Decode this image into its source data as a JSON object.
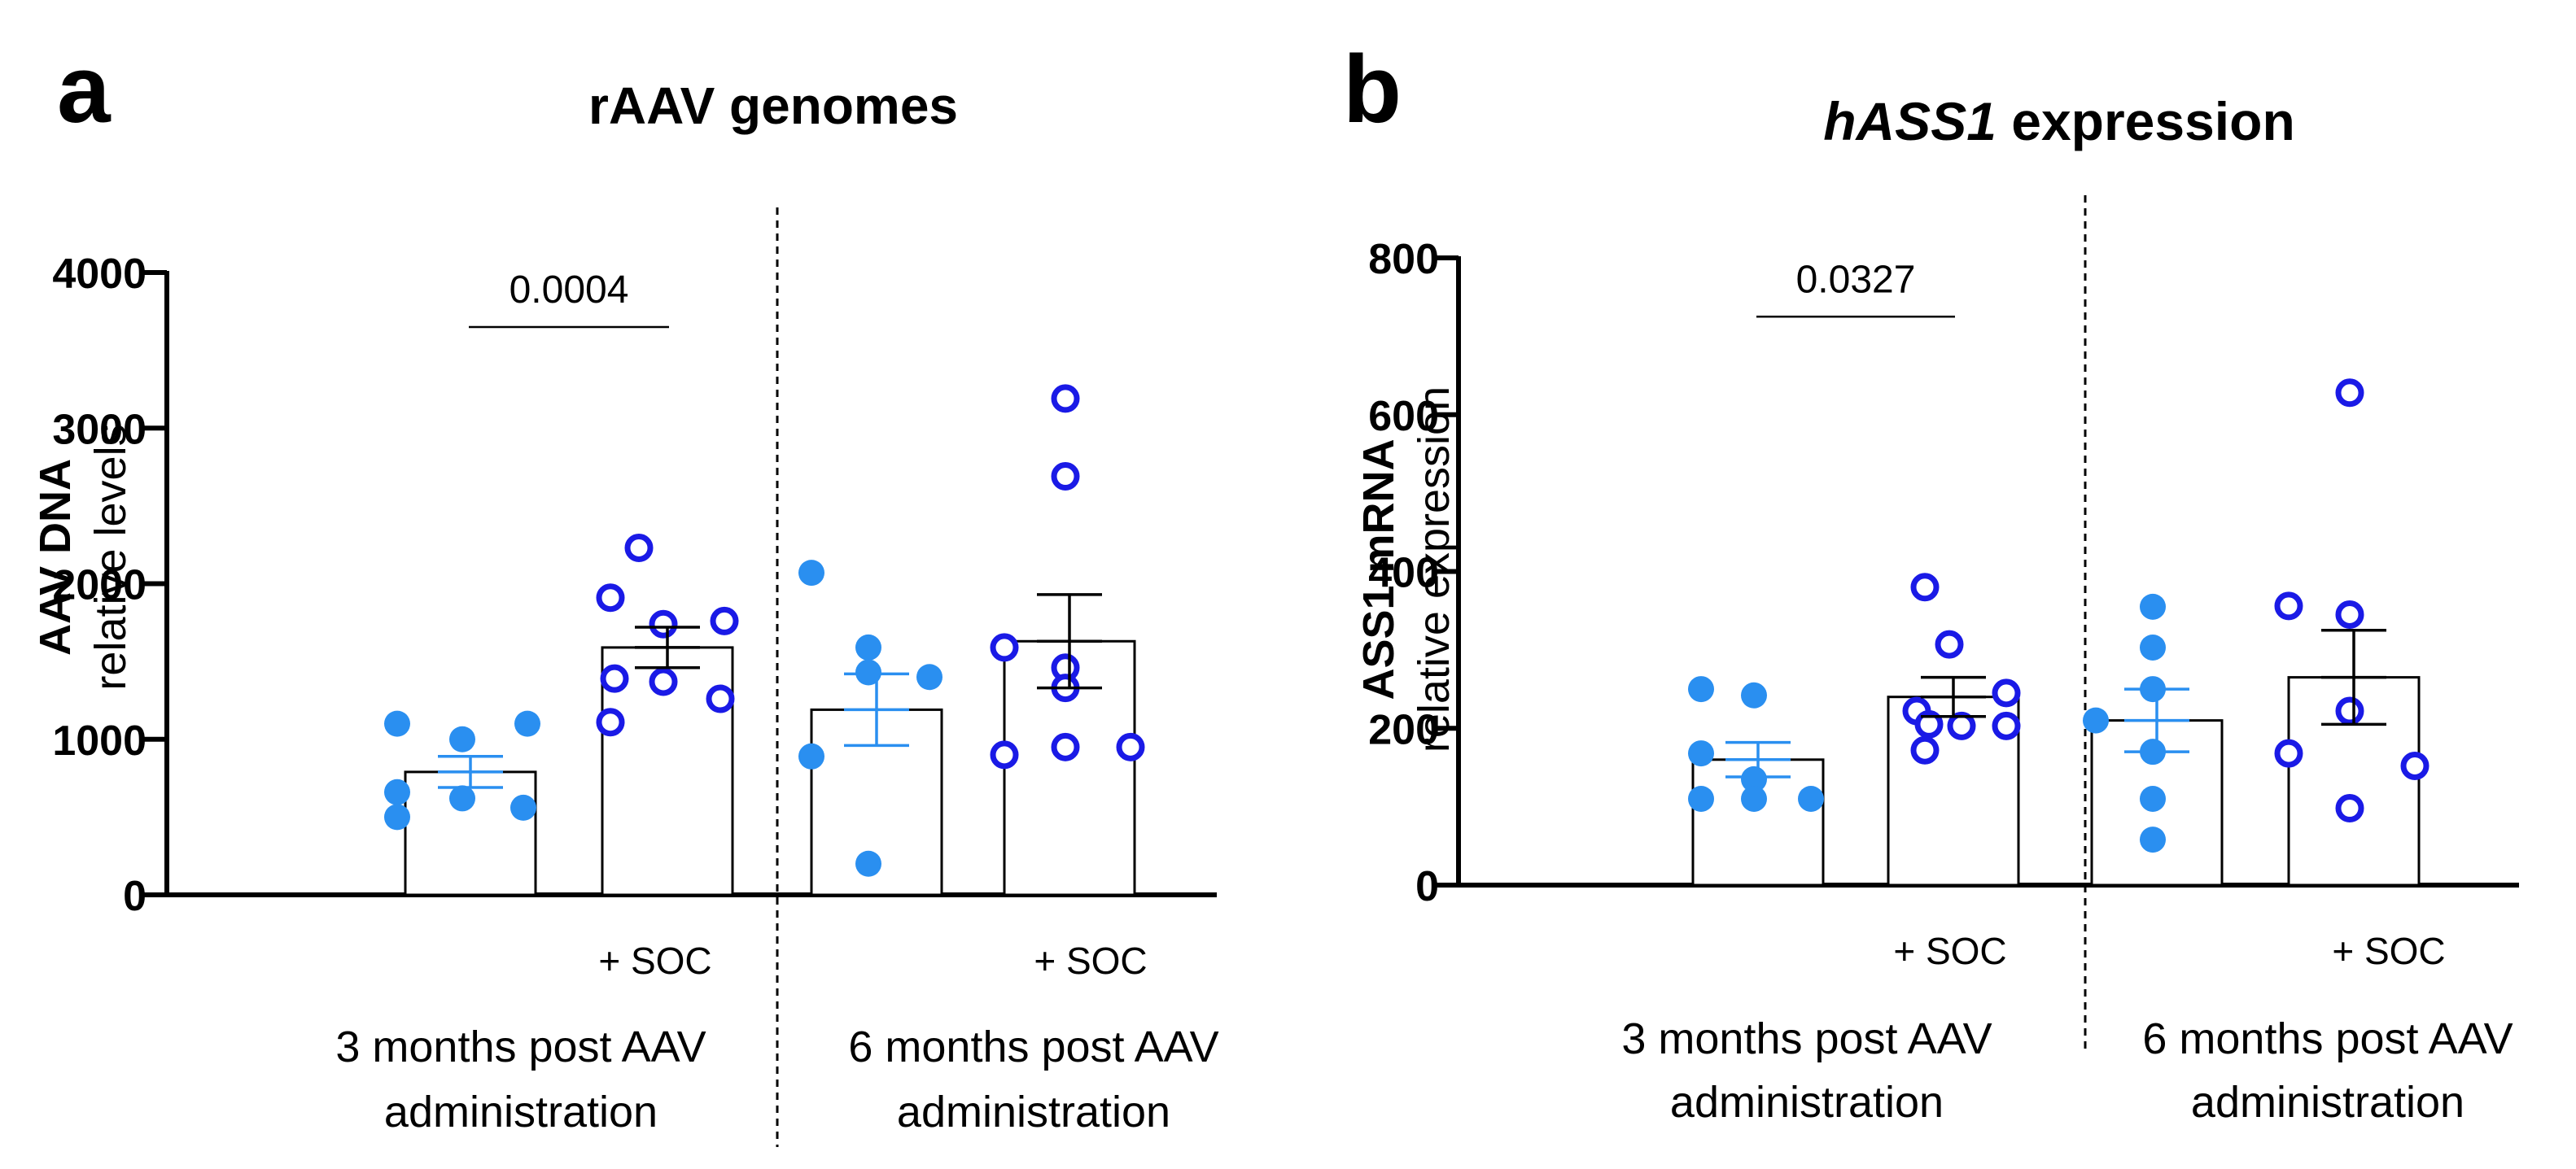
{
  "figure": {
    "panels": [
      {
        "letter": "a",
        "title_text": "rAAV genomes",
        "title_italic": "",
        "title_rest": "",
        "ylabel_lines": [
          "AAV  DNA",
          "relative levels"
        ],
        "pvalue": "0.0004",
        "soc_label": "+ SOC",
        "group_labels": [
          [
            "3 months post AAV",
            "administration"
          ],
          [
            "6 months post AAV",
            "administration"
          ]
        ]
      },
      {
        "letter": "b",
        "title_text": "",
        "title_italic": "hASS1",
        "title_rest": " expression",
        "ylabel_lines": [
          "ASS1  mRNA",
          "relative expression"
        ],
        "pvalue": "0.0327",
        "soc_label": "+ SOC",
        "group_labels": [
          [
            "3 months post AAV",
            "administration"
          ],
          [
            "6 months post AAV",
            "administration"
          ]
        ]
      }
    ]
  },
  "colors": {
    "filled_point": "#2a8ff0",
    "open_point": "#1a1ae6",
    "axis": "#000000"
  },
  "chart_data": [
    {
      "type": "bar",
      "title": "rAAV genomes",
      "ylabel": "AAV DNA relative levels",
      "ylim": [
        0,
        4000
      ],
      "yticks": [
        0,
        1000,
        2000,
        3000,
        4000
      ],
      "categories": [
        "3 months",
        "3 months + SOC",
        "6 months",
        "6 months + SOC"
      ],
      "values": [
        790,
        1590,
        1190,
        1630
      ],
      "sem": [
        100,
        130,
        230,
        300
      ],
      "points": [
        [
          1100,
          1000,
          1100,
          660,
          620,
          500,
          560
        ],
        [
          2230,
          1910,
          1760,
          1740,
          1390,
          1370,
          1260,
          1110
        ],
        [
          2070,
          1590,
          1430,
          1400,
          890,
          200
        ],
        [
          3190,
          2690,
          1590,
          1460,
          1330,
          950,
          900,
          950
        ]
      ],
      "point_style": [
        "filled",
        "open",
        "filled",
        "open"
      ],
      "comparison": {
        "from": 0,
        "to": 1,
        "label": "0.0004",
        "y": 3650
      }
    },
    {
      "type": "bar",
      "title": "hASS1 expression",
      "ylabel": "ASS1 mRNA relative expression",
      "ylim": [
        0,
        800
      ],
      "yticks": [
        0,
        200,
        400,
        600,
        800
      ],
      "categories": [
        "3 months",
        "3 months + SOC",
        "6 months",
        "6 months + SOC"
      ],
      "values": [
        160,
        240,
        210,
        265
      ],
      "sem": [
        22,
        25,
        40,
        60
      ],
      "points": [
        [
          250,
          242,
          168,
          135,
          110,
          110,
          110
        ],
        [
          380,
          307,
          245,
          222,
          205,
          203,
          203,
          172
        ],
        [
          355,
          303,
          250,
          210,
          170,
          110,
          58
        ],
        [
          628,
          356,
          345,
          222,
          168,
          152,
          98
        ]
      ],
      "point_style": [
        "filled",
        "open",
        "filled",
        "open"
      ],
      "comparison": {
        "from": 0,
        "to": 1,
        "label": "0.0327",
        "y": 725
      }
    }
  ]
}
